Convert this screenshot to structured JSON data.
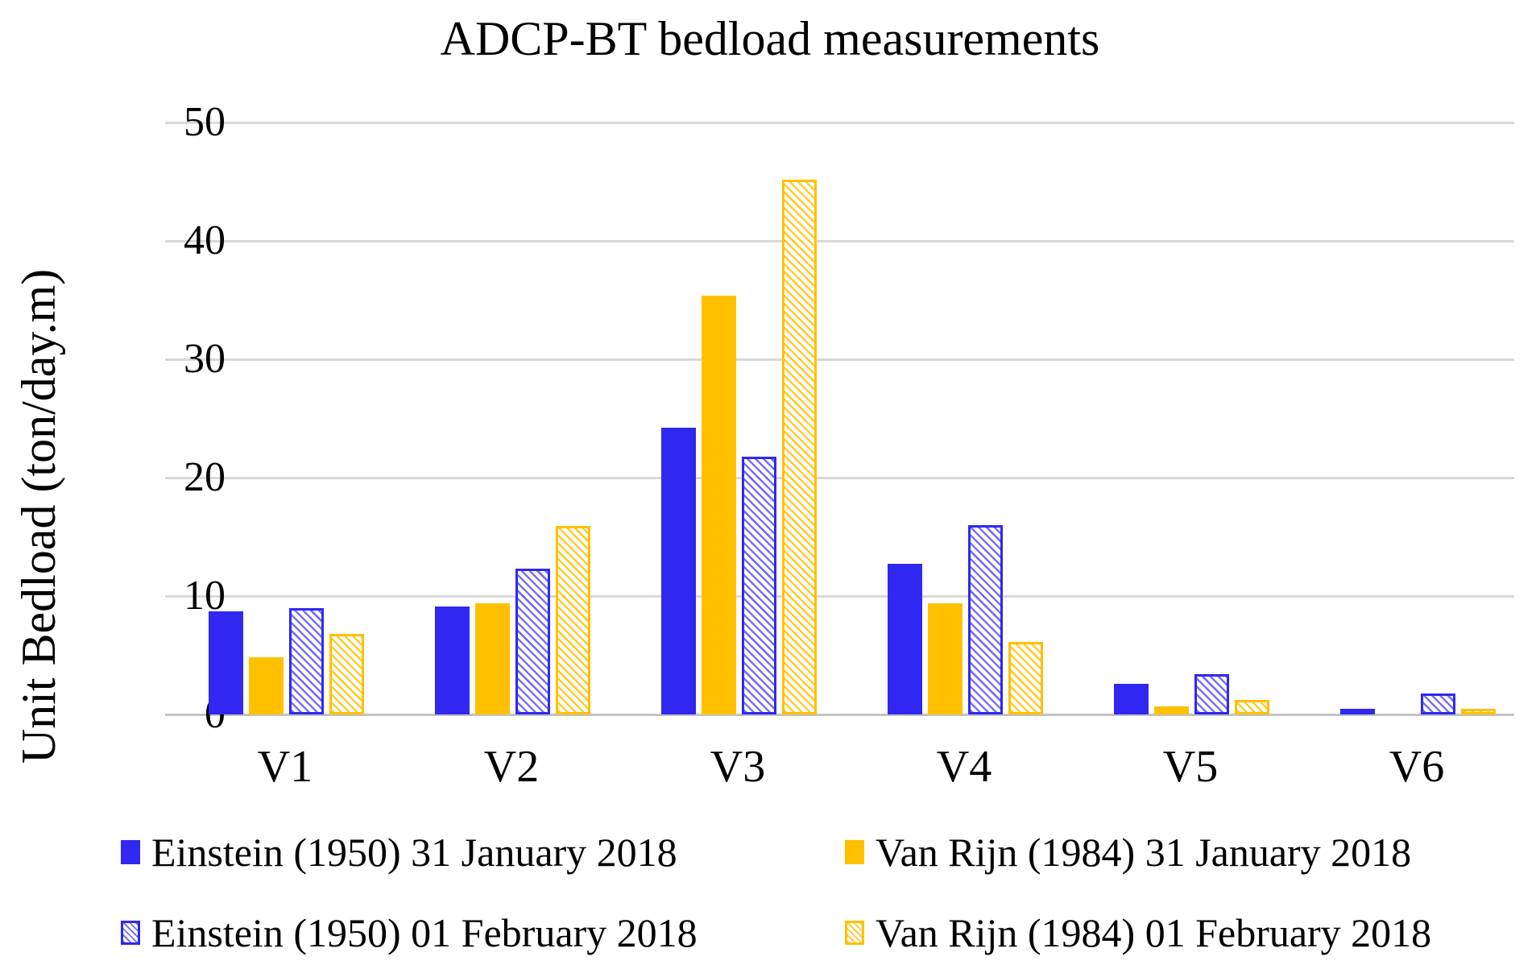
{
  "page": {
    "background": "#ffffff"
  },
  "chart_data": {
    "type": "bar",
    "title": "ADCP-BT bedload measurements",
    "xlabel": "",
    "ylabel": "Unit Bedload (ton/day.m)",
    "categories": [
      "V1",
      "V2",
      "V3",
      "V4",
      "V5",
      "V6"
    ],
    "series": [
      {
        "name": "Einstein (1950) 31 January 2018",
        "fill": "solid",
        "color": "#3028f0",
        "values": [
          8.7,
          9.1,
          24.2,
          12.7,
          2.6,
          0.5
        ]
      },
      {
        "name": "Van Rijn (1984) 31 January 2018",
        "fill": "solid",
        "color": "#ffc000",
        "values": [
          4.8,
          9.4,
          35.4,
          9.4,
          0.7,
          0
        ]
      },
      {
        "name": "Einstein (1950) 01 February 2018",
        "fill": "hatched",
        "color": "#3028f0",
        "values": [
          9.0,
          12.3,
          21.8,
          16.0,
          3.4,
          1.8
        ]
      },
      {
        "name": "Van Rijn (1984) 01 February 2018",
        "fill": "hatched",
        "color": "#ffc000",
        "values": [
          6.8,
          15.9,
          45.2,
          6.1,
          1.2,
          0.5
        ]
      }
    ],
    "yticks": [
      0,
      10,
      20,
      30,
      40,
      50
    ],
    "ylim": [
      0,
      50
    ],
    "grid": true,
    "legend_position": "bottom",
    "colors": {
      "blue": "#3028f0",
      "gold": "#ffc000",
      "gridline": "#d9d9d9"
    }
  }
}
